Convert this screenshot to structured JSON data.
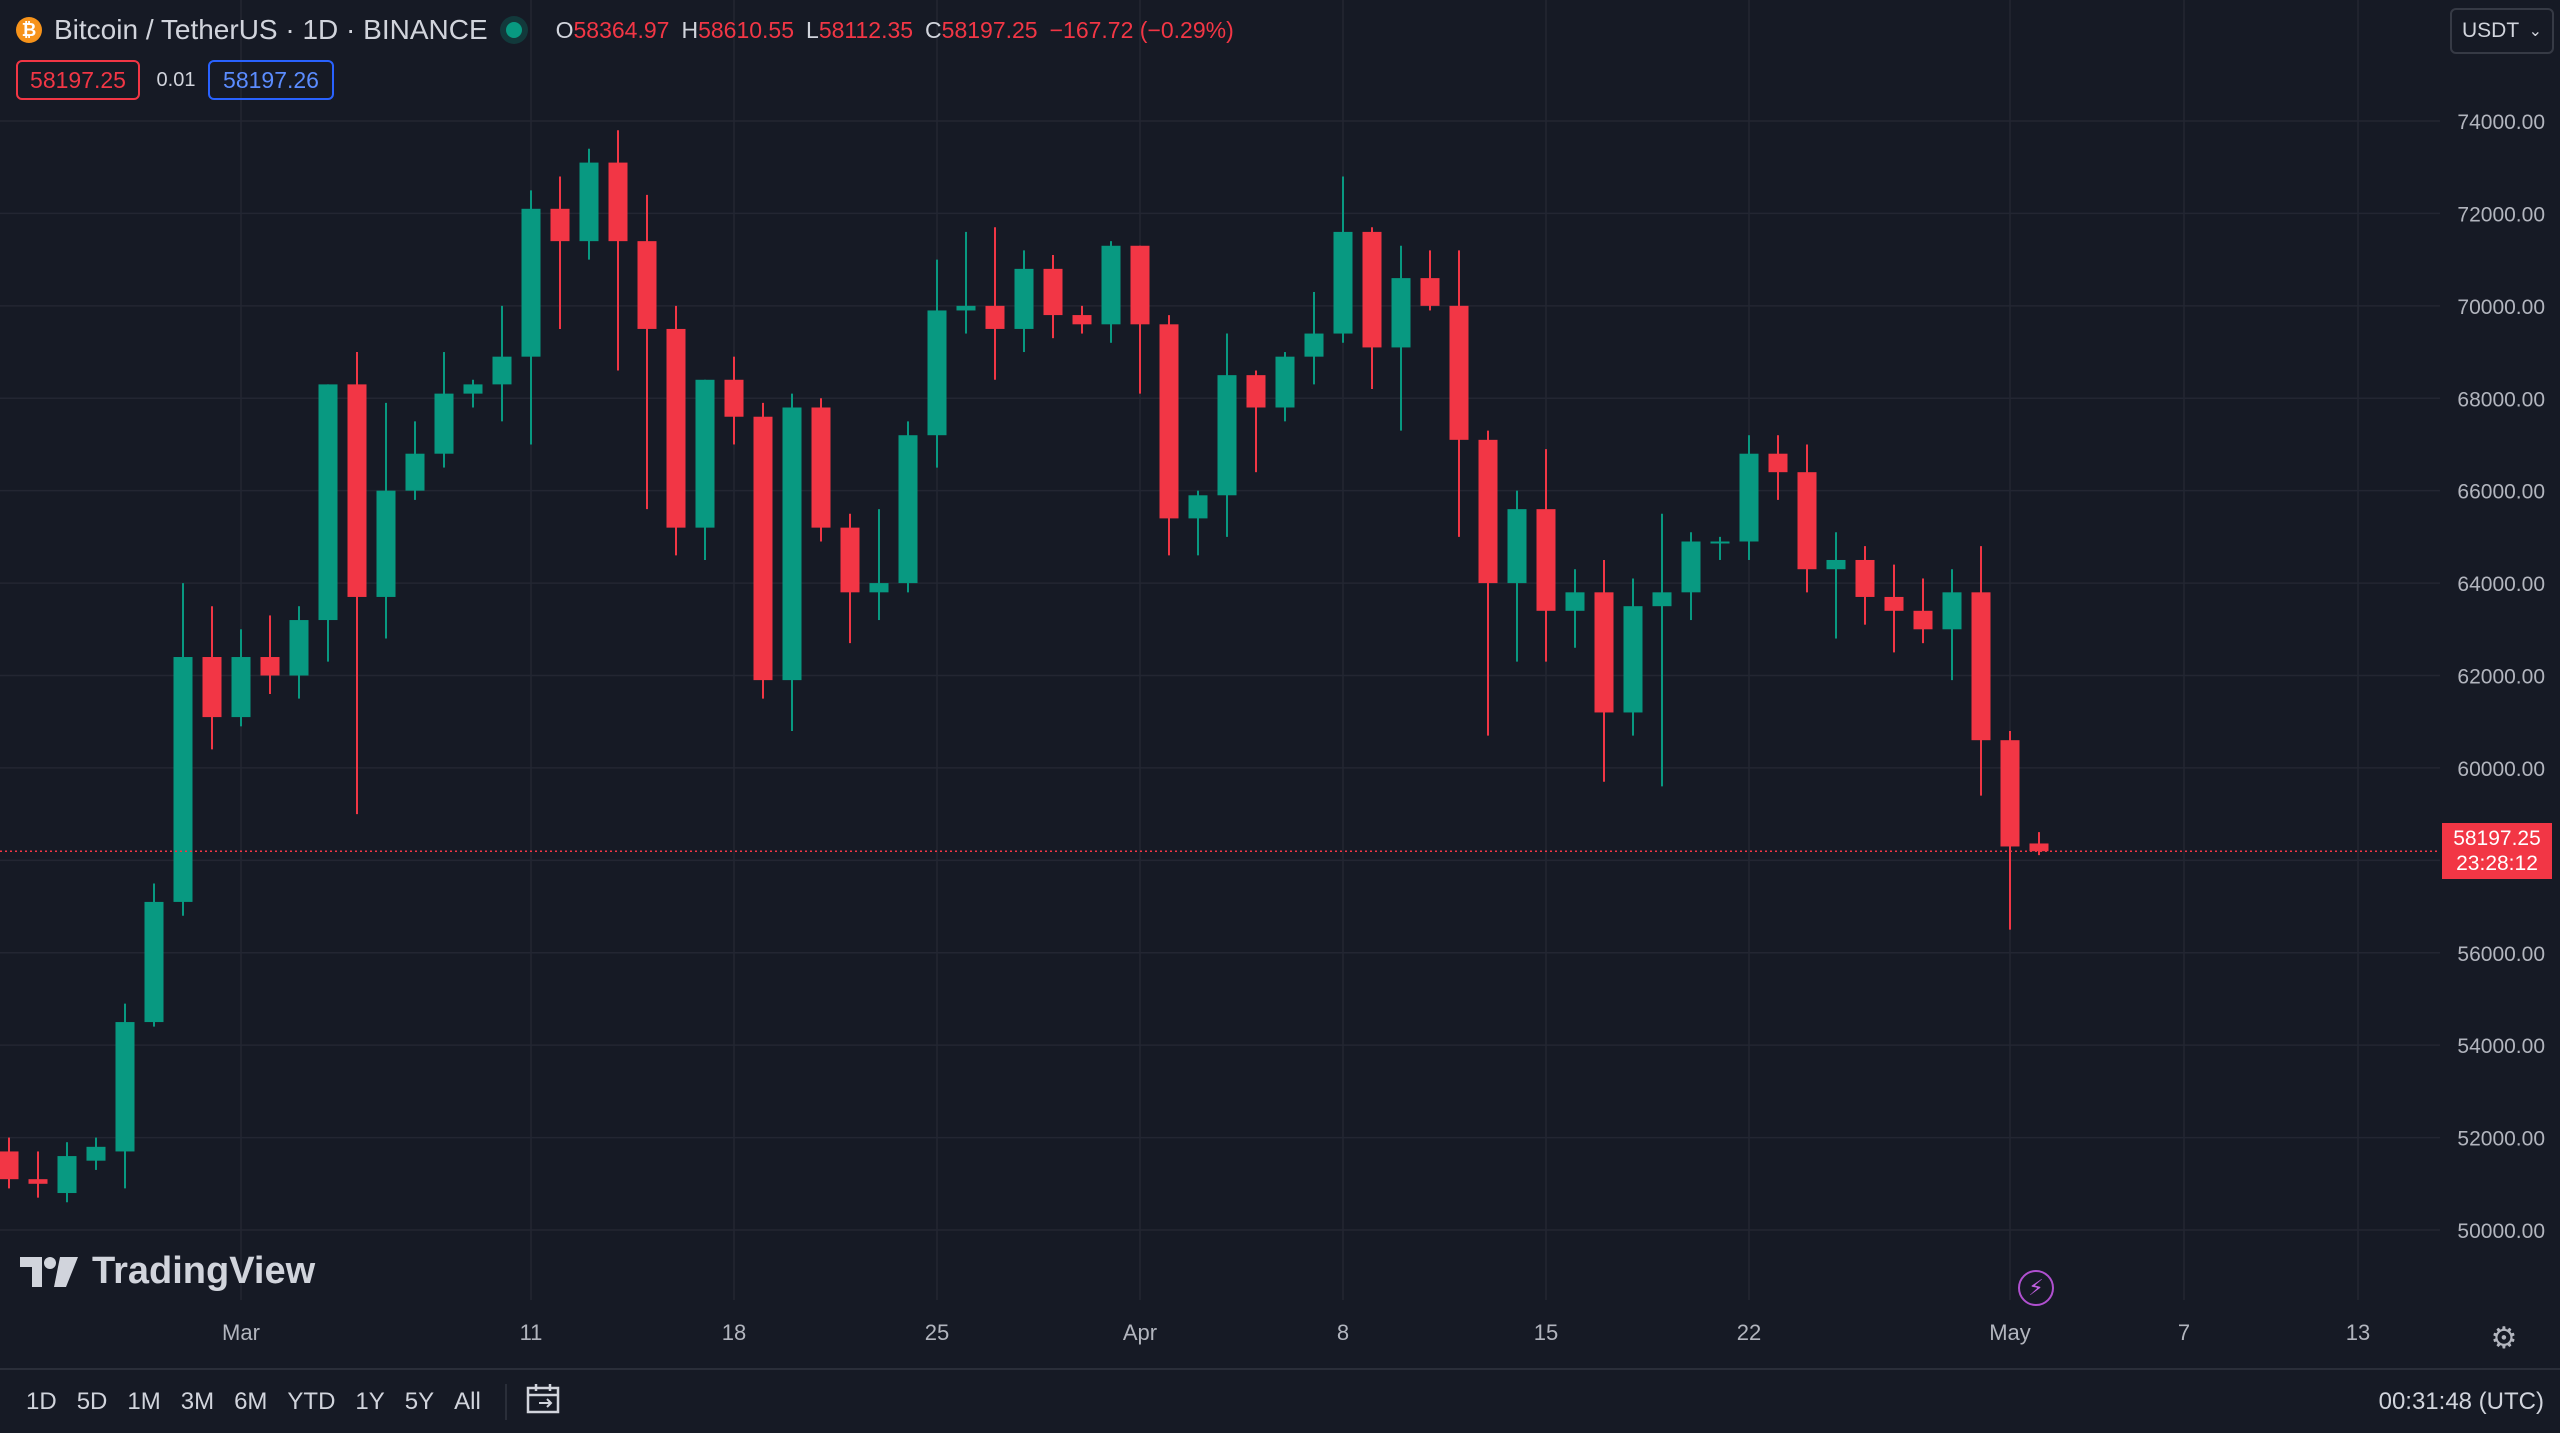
{
  "header": {
    "symbol_title": "Bitcoin / TetherUS · 1D · BINANCE",
    "coin_icon": "bitcoin-icon",
    "ohlc": {
      "o_label": "O",
      "o_value": "58364.97",
      "h_label": "H",
      "h_value": "58610.55",
      "l_label": "L",
      "l_value": "58112.35",
      "c_label": "C",
      "c_value": "58197.25",
      "change": "−167.72 (−0.29%)"
    },
    "bid_price": "58197.25",
    "spread": "0.01",
    "ask_price": "58197.26",
    "currency_select": "USDT"
  },
  "last_price_tag": {
    "price": "58197.25",
    "countdown": "23:28:12"
  },
  "logo_text": "TradingView",
  "time_ranges": [
    "1D",
    "5D",
    "1M",
    "3M",
    "6M",
    "YTD",
    "1Y",
    "5Y",
    "All"
  ],
  "clock": "00:31:48 (UTC)",
  "colors": {
    "up": "#089981",
    "down": "#f23645",
    "background": "#161a25",
    "grid": "#232632"
  },
  "chart_data": {
    "type": "candlestick",
    "title": "",
    "ylim": [
      49000,
      76000
    ],
    "y_ticks": [
      50000,
      52000,
      54000,
      56000,
      58000,
      60000,
      62000,
      64000,
      66000,
      68000,
      70000,
      72000,
      74000
    ],
    "y_tick_labels": [
      "50000.00",
      "52000.00",
      "54000.00",
      "56000.00",
      "58000.00",
      "60000.00",
      "62000.00",
      "64000.00",
      "66000.00",
      "68000.00",
      "70000.00",
      "72000.00",
      "74000.00"
    ],
    "x_tick_labels": [
      {
        "label": "Mar",
        "index": 8
      },
      {
        "label": "11",
        "index": 18
      },
      {
        "label": "18",
        "index": 25
      },
      {
        "label": "25",
        "index": 32
      },
      {
        "label": "Apr",
        "index": 39
      },
      {
        "label": "8",
        "index": 46
      },
      {
        "label": "15",
        "index": 53
      },
      {
        "label": "22",
        "index": 60
      },
      {
        "label": "May",
        "index": 69
      },
      {
        "label": "7",
        "index": 75
      },
      {
        "label": "13",
        "index": 81
      }
    ],
    "candles": [
      {
        "o": 51700,
        "h": 52000,
        "l": 50900,
        "c": 51100
      },
      {
        "o": 51100,
        "h": 51700,
        "l": 50700,
        "c": 51000
      },
      {
        "o": 50800,
        "h": 51900,
        "l": 50600,
        "c": 51600
      },
      {
        "o": 51500,
        "h": 52000,
        "l": 51300,
        "c": 51800
      },
      {
        "o": 51700,
        "h": 54900,
        "l": 50900,
        "c": 54500
      },
      {
        "o": 54500,
        "h": 57500,
        "l": 54400,
        "c": 57100
      },
      {
        "o": 57100,
        "h": 64000,
        "l": 56800,
        "c": 62400
      },
      {
        "o": 62400,
        "h": 63500,
        "l": 60400,
        "c": 61100
      },
      {
        "o": 61100,
        "h": 63000,
        "l": 60900,
        "c": 62400
      },
      {
        "o": 62400,
        "h": 63300,
        "l": 61600,
        "c": 62000
      },
      {
        "o": 62000,
        "h": 63500,
        "l": 61500,
        "c": 63200
      },
      {
        "o": 63200,
        "h": 68300,
        "l": 62300,
        "c": 68300
      },
      {
        "o": 68300,
        "h": 69000,
        "l": 59000,
        "c": 63700
      },
      {
        "o": 63700,
        "h": 67900,
        "l": 62800,
        "c": 66000
      },
      {
        "o": 66000,
        "h": 67500,
        "l": 65800,
        "c": 66800
      },
      {
        "o": 66800,
        "h": 69000,
        "l": 66500,
        "c": 68100
      },
      {
        "o": 68100,
        "h": 68400,
        "l": 67800,
        "c": 68300
      },
      {
        "o": 68300,
        "h": 70000,
        "l": 67500,
        "c": 68900
      },
      {
        "o": 68900,
        "h": 72500,
        "l": 67000,
        "c": 72100
      },
      {
        "o": 72100,
        "h": 72800,
        "l": 69500,
        "c": 71400
      },
      {
        "o": 71400,
        "h": 73400,
        "l": 71000,
        "c": 73100
      },
      {
        "o": 73100,
        "h": 73800,
        "l": 68600,
        "c": 71400
      },
      {
        "o": 71400,
        "h": 72400,
        "l": 65600,
        "c": 69500
      },
      {
        "o": 69500,
        "h": 70000,
        "l": 64600,
        "c": 65200
      },
      {
        "o": 65200,
        "h": 68400,
        "l": 64500,
        "c": 68400
      },
      {
        "o": 68400,
        "h": 68900,
        "l": 67000,
        "c": 67600
      },
      {
        "o": 67600,
        "h": 67900,
        "l": 61500,
        "c": 61900
      },
      {
        "o": 61900,
        "h": 68100,
        "l": 60800,
        "c": 67800
      },
      {
        "o": 67800,
        "h": 68000,
        "l": 64900,
        "c": 65200
      },
      {
        "o": 65200,
        "h": 65500,
        "l": 62700,
        "c": 63800
      },
      {
        "o": 63800,
        "h": 65600,
        "l": 63200,
        "c": 64000
      },
      {
        "o": 64000,
        "h": 67500,
        "l": 63800,
        "c": 67200
      },
      {
        "o": 67200,
        "h": 71000,
        "l": 66500,
        "c": 69900
      },
      {
        "o": 69900,
        "h": 71600,
        "l": 69400,
        "c": 70000
      },
      {
        "o": 70000,
        "h": 71700,
        "l": 68400,
        "c": 69500
      },
      {
        "o": 69500,
        "h": 71200,
        "l": 69000,
        "c": 70800
      },
      {
        "o": 70800,
        "h": 71100,
        "l": 69300,
        "c": 69800
      },
      {
        "o": 69800,
        "h": 70000,
        "l": 69400,
        "c": 69600
      },
      {
        "o": 69600,
        "h": 71400,
        "l": 69200,
        "c": 71300
      },
      {
        "o": 71300,
        "h": 71300,
        "l": 68100,
        "c": 69600
      },
      {
        "o": 69600,
        "h": 69800,
        "l": 64600,
        "c": 65400
      },
      {
        "o": 65400,
        "h": 66000,
        "l": 64600,
        "c": 65900
      },
      {
        "o": 65900,
        "h": 69400,
        "l": 65000,
        "c": 68500
      },
      {
        "o": 68500,
        "h": 68600,
        "l": 66400,
        "c": 67800
      },
      {
        "o": 67800,
        "h": 69000,
        "l": 67500,
        "c": 68900
      },
      {
        "o": 68900,
        "h": 70300,
        "l": 68300,
        "c": 69400
      },
      {
        "o": 69400,
        "h": 72800,
        "l": 69200,
        "c": 71600
      },
      {
        "o": 71600,
        "h": 71700,
        "l": 68200,
        "c": 69100
      },
      {
        "o": 69100,
        "h": 71300,
        "l": 67300,
        "c": 70600
      },
      {
        "o": 70600,
        "h": 71200,
        "l": 69900,
        "c": 70000
      },
      {
        "o": 70000,
        "h": 71200,
        "l": 65000,
        "c": 67100
      },
      {
        "o": 67100,
        "h": 67300,
        "l": 60700,
        "c": 64000
      },
      {
        "o": 64000,
        "h": 66000,
        "l": 62300,
        "c": 65600
      },
      {
        "o": 65600,
        "h": 66900,
        "l": 62300,
        "c": 63400
      },
      {
        "o": 63400,
        "h": 64300,
        "l": 62600,
        "c": 63800
      },
      {
        "o": 63800,
        "h": 64500,
        "l": 59700,
        "c": 61200
      },
      {
        "o": 61200,
        "h": 64100,
        "l": 60700,
        "c": 63500
      },
      {
        "o": 63500,
        "h": 65500,
        "l": 59600,
        "c": 63800
      },
      {
        "o": 63800,
        "h": 65100,
        "l": 63200,
        "c": 64900
      },
      {
        "o": 64900,
        "h": 65000,
        "l": 64500,
        "c": 64900
      },
      {
        "o": 64900,
        "h": 67200,
        "l": 64500,
        "c": 66800
      },
      {
        "o": 66800,
        "h": 67200,
        "l": 65800,
        "c": 66400
      },
      {
        "o": 66400,
        "h": 67000,
        "l": 63800,
        "c": 64300
      },
      {
        "o": 64300,
        "h": 65100,
        "l": 62800,
        "c": 64500
      },
      {
        "o": 64500,
        "h": 64800,
        "l": 63100,
        "c": 63700
      },
      {
        "o": 63700,
        "h": 64400,
        "l": 62500,
        "c": 63400
      },
      {
        "o": 63400,
        "h": 64100,
        "l": 62700,
        "c": 63000
      },
      {
        "o": 63000,
        "h": 64300,
        "l": 61900,
        "c": 63800
      },
      {
        "o": 63800,
        "h": 64800,
        "l": 59400,
        "c": 60600
      },
      {
        "o": 60600,
        "h": 60800,
        "l": 56500,
        "c": 58300
      },
      {
        "o": 58364.97,
        "h": 58610.55,
        "l": 58112.35,
        "c": 58197.25
      }
    ],
    "last_price": 58197.25
  }
}
